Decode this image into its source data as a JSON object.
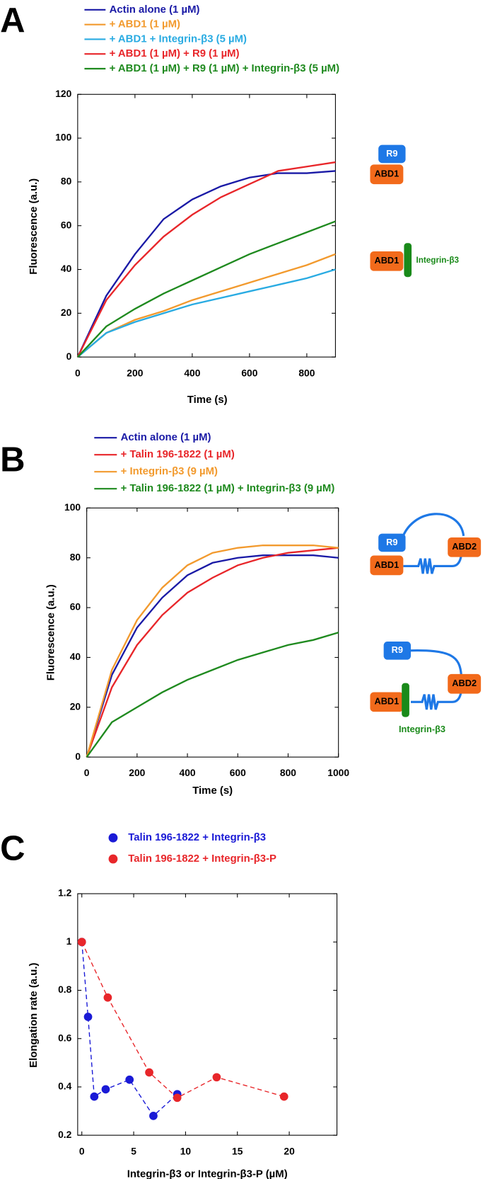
{
  "chart_data": [
    {
      "type": "line",
      "panel": "A",
      "xlabel": "Time (s)",
      "ylabel": "Fluorescence (a.u.)",
      "x": [
        0,
        100,
        200,
        300,
        400,
        500,
        600,
        700,
        800,
        900
      ],
      "xlim": [
        0,
        900
      ],
      "ylim": [
        0,
        120
      ],
      "xticks": [
        0,
        200,
        400,
        600,
        800
      ],
      "yticks": [
        0,
        20,
        40,
        60,
        80,
        100,
        120
      ],
      "series": [
        {
          "name": "Actin alone (1 µM)",
          "color": "#1a1aa6",
          "values": [
            0,
            28,
            47,
            63,
            72,
            78,
            82,
            84,
            84,
            85
          ]
        },
        {
          "name": "+ ABD1 (1 µM)",
          "color": "#f29a2e",
          "values": [
            0,
            11,
            17,
            21,
            26,
            30,
            34,
            38,
            42,
            47
          ]
        },
        {
          "name": "+ ABD1 + Integrin-β3 (5 µM)",
          "color": "#29abe2",
          "values": [
            0,
            11,
            16,
            20,
            24,
            27,
            30,
            33,
            36,
            40
          ]
        },
        {
          "name": "+ ABD1 (1 µM) + R9 (1 µM)",
          "color": "#e8262a",
          "values": [
            0,
            26,
            42,
            55,
            65,
            73,
            79,
            85,
            87,
            89
          ]
        },
        {
          "name": "+ ABD1 (1 µM) + R9 (1 µM) + Integrin-β3 (5 µM)",
          "color": "#1f8a1f",
          "values": [
            0,
            14,
            22,
            29,
            35,
            41,
            47,
            52,
            57,
            62
          ]
        }
      ],
      "annotations": [
        "R9",
        "ABD1",
        "ABD1",
        "Integrin-β3"
      ]
    },
    {
      "type": "line",
      "panel": "B",
      "xlabel": "Time (s)",
      "ylabel": "Fluorescence (a.u.)",
      "x": [
        0,
        100,
        200,
        300,
        400,
        500,
        600,
        700,
        800,
        900,
        1000
      ],
      "xlim": [
        0,
        1000
      ],
      "ylim": [
        0,
        100
      ],
      "xticks": [
        0,
        200,
        400,
        600,
        800,
        1000
      ],
      "yticks": [
        0,
        20,
        40,
        60,
        80,
        100
      ],
      "series": [
        {
          "name": "Actin alone (1 µM)",
          "color": "#1a1aa6",
          "values": [
            0,
            33,
            52,
            64,
            73,
            78,
            80,
            81,
            81,
            81,
            80
          ]
        },
        {
          "name": "+ Talin 196-1822 (1 µM)",
          "color": "#e8262a",
          "values": [
            0,
            28,
            45,
            57,
            66,
            72,
            77,
            80,
            82,
            83,
            84
          ]
        },
        {
          "name": "+ Integrin-β3 (9 µM)",
          "color": "#f29a2e",
          "values": [
            0,
            35,
            55,
            68,
            77,
            82,
            84,
            85,
            85,
            85,
            84
          ]
        },
        {
          "name": "+ Talin 196-1822 (1 µM) + Integrin-β3 (9 µM)",
          "color": "#1f8a1f",
          "values": [
            0,
            14,
            20,
            26,
            31,
            35,
            39,
            42,
            45,
            47,
            50
          ]
        }
      ],
      "annotations": [
        "R9",
        "ABD1",
        "ABD2",
        "R9",
        "ABD2",
        "ABD1",
        "Integrin-β3"
      ]
    },
    {
      "type": "scatter",
      "panel": "C",
      "xlabel": "Integrin-β3 or Integrin-β3-P (µM)",
      "ylabel": "Elongation rate (a.u.)",
      "xlim": [
        -0.4,
        24.6
      ],
      "ylim": [
        0.2,
        1.2
      ],
      "xticks": [
        0,
        5,
        10,
        15,
        20
      ],
      "yticks": [
        0.2,
        0.4,
        0.6,
        0.8,
        1,
        1.2
      ],
      "series": [
        {
          "name": "Talin 196-1822 + Integrin-β3",
          "color": "#1a1ad6",
          "x": [
            0,
            0.6,
            1.2,
            2.3,
            4.6,
            6.9,
            9.2
          ],
          "values": [
            1,
            0.69,
            0.36,
            0.39,
            0.43,
            0.28,
            0.37
          ]
        },
        {
          "name": "Talin 196-1822 + Integrin-β3-P",
          "color": "#e8262a",
          "x": [
            0,
            2.5,
            6.5,
            9.2,
            13,
            19.5
          ],
          "values": [
            1,
            0.77,
            0.46,
            0.355,
            0.44,
            0.36
          ]
        }
      ]
    }
  ]
}
